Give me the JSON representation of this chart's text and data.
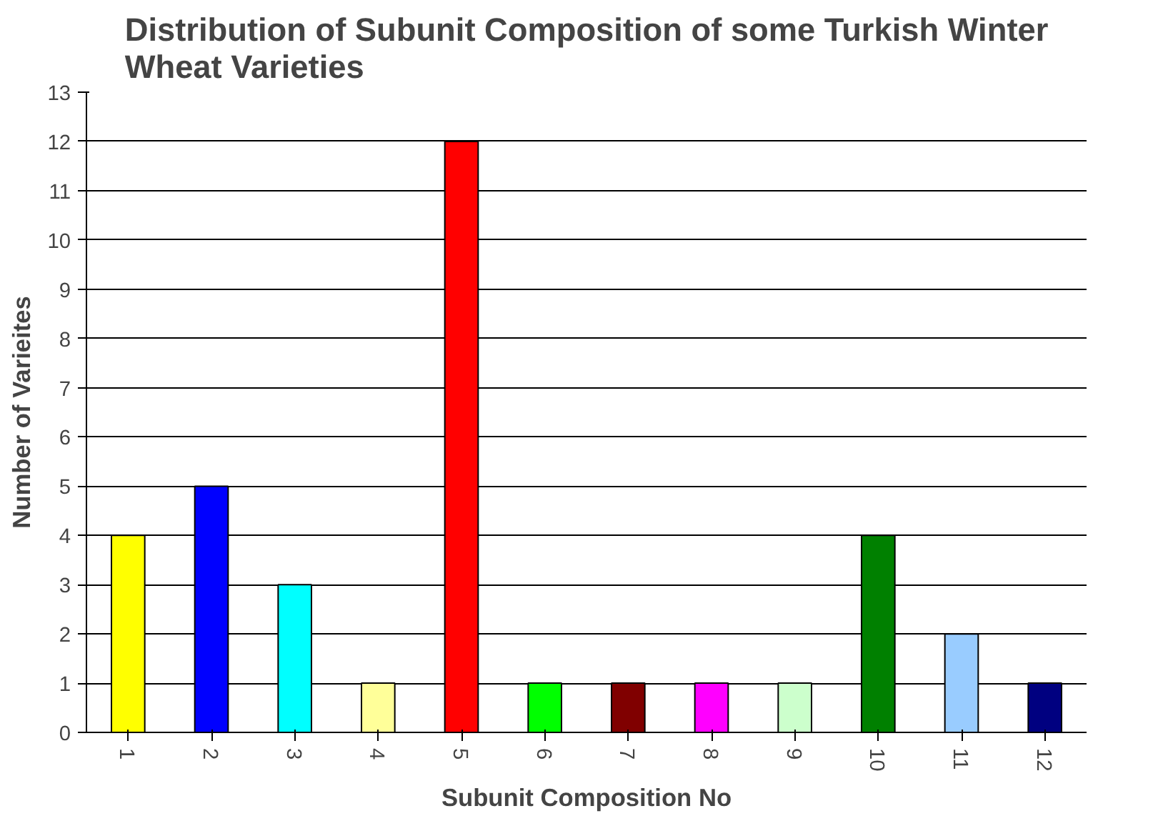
{
  "chart_data": {
    "type": "bar",
    "title": "Distribution of Subunit Composition of some Turkish Winter\nWheat Varieties",
    "xlabel": "Subunit Composition No",
    "ylabel": "Number of Varieites",
    "categories": [
      "1",
      "2",
      "3",
      "4",
      "5",
      "6",
      "7",
      "8",
      "9",
      "10",
      "11",
      "12"
    ],
    "values": [
      4,
      5,
      3,
      1,
      12,
      1,
      1,
      1,
      1,
      4,
      2,
      1
    ],
    "colors": [
      "#ffff00",
      "#0000ff",
      "#00ffff",
      "#ffff99",
      "#ff0000",
      "#00ff00",
      "#800000",
      "#ff00ff",
      "#ccffcc",
      "#008000",
      "#99ccff",
      "#000080"
    ],
    "ylim": [
      0,
      13
    ],
    "yticks": [
      0,
      1,
      2,
      3,
      4,
      5,
      6,
      7,
      8,
      9,
      10,
      11,
      12,
      13
    ],
    "grid": "y"
  }
}
